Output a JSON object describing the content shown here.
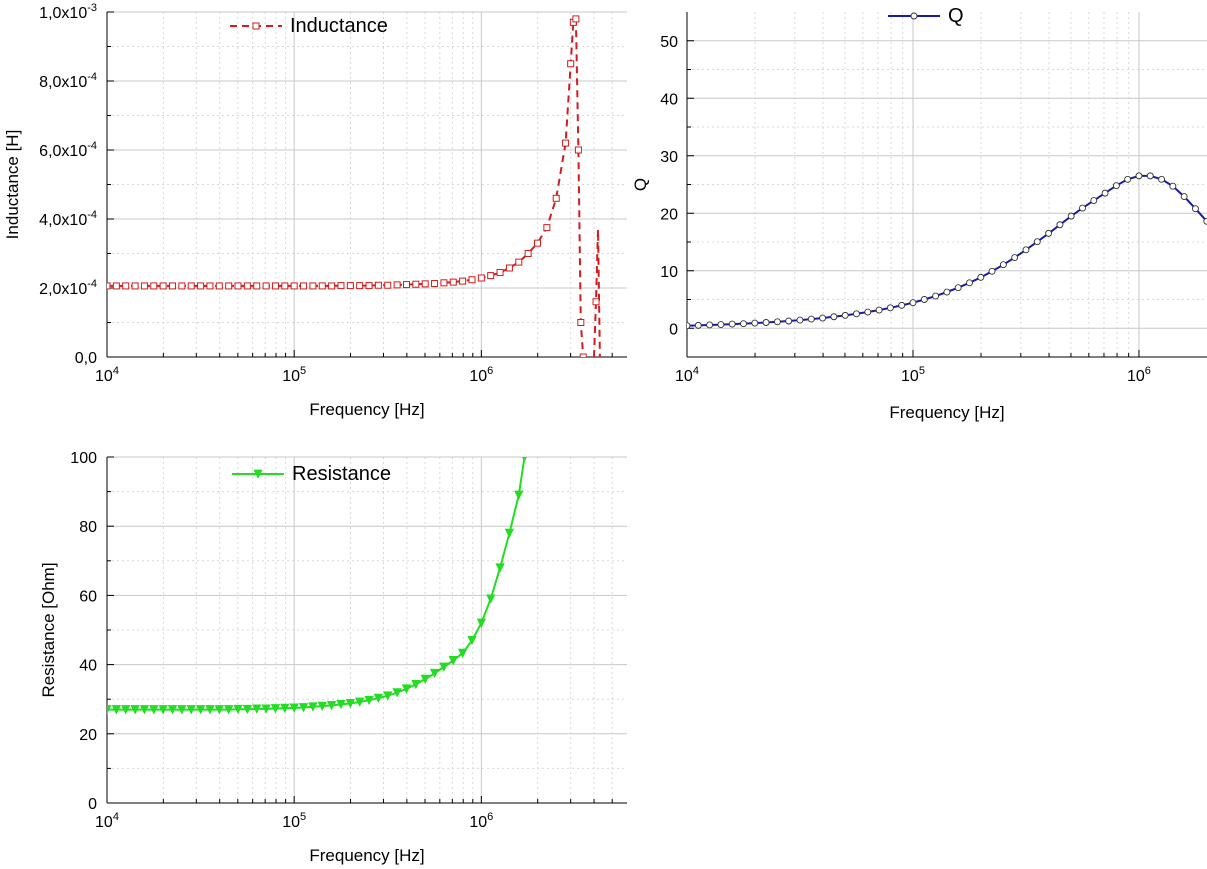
{
  "chart_data": [
    {
      "type": "line",
      "xlabel": "Frequency [Hz]",
      "ylabel": "Inductance [H]",
      "x_scale": "log",
      "xlim": [
        10000,
        6000000
      ],
      "ylim": [
        0,
        0.001
      ],
      "x_ticks": [
        {
          "value": 10000,
          "base": "10",
          "exp": "4"
        },
        {
          "value": 100000,
          "base": "10",
          "exp": "5"
        },
        {
          "value": 1000000,
          "base": "10",
          "exp": "6"
        }
      ],
      "y_ticks": [
        {
          "value": 0,
          "mant": "0,0",
          "exp": ""
        },
        {
          "value": 0.0002,
          "mant": "2,0x10",
          "exp": "-4"
        },
        {
          "value": 0.0004,
          "mant": "4,0x10",
          "exp": "-4"
        },
        {
          "value": 0.0006,
          "mant": "6,0x10",
          "exp": "-4"
        },
        {
          "value": 0.0008,
          "mant": "8,0x10",
          "exp": "-4"
        },
        {
          "value": 0.001,
          "mant": "1,0x10",
          "exp": "-3"
        }
      ],
      "grid": true,
      "legend_position": "top-center",
      "series": [
        {
          "name": "Inductance",
          "color": "#d01e1e",
          "line_style": "dashed",
          "marker": "square",
          "points": [
            [
              10000,
              0.000206
            ],
            [
              11220,
              0.000206
            ],
            [
              12589,
              0.000206
            ],
            [
              14125,
              0.000206
            ],
            [
              15849,
              0.000206
            ],
            [
              17783,
              0.000206
            ],
            [
              19953,
              0.000206
            ],
            [
              22387,
              0.000206
            ],
            [
              25119,
              0.000206
            ],
            [
              28184,
              0.000206
            ],
            [
              31623,
              0.000206
            ],
            [
              35481,
              0.000206
            ],
            [
              39811,
              0.000206
            ],
            [
              44668,
              0.000206
            ],
            [
              50119,
              0.000206
            ],
            [
              56234,
              0.000206
            ],
            [
              63096,
              0.000206
            ],
            [
              70795,
              0.000206
            ],
            [
              79433,
              0.000206
            ],
            [
              89125,
              0.000206
            ],
            [
              100000,
              0.000206
            ],
            [
              112202,
              0.000206
            ],
            [
              125893,
              0.000206
            ],
            [
              141254,
              0.000206
            ],
            [
              158489,
              0.000206
            ],
            [
              177828,
              0.000207
            ],
            [
              199526,
              0.000207
            ],
            [
              223872,
              0.000207
            ],
            [
              251189,
              0.000207
            ],
            [
              281838,
              0.000208
            ],
            [
              316228,
              0.000208
            ],
            [
              354813,
              0.000209
            ],
            [
              398107,
              0.00021
            ],
            [
              446684,
              0.000211
            ],
            [
              501187,
              0.000212
            ],
            [
              562341,
              0.000213
            ],
            [
              630957,
              0.000215
            ],
            [
              707946,
              0.000217
            ],
            [
              794328,
              0.00022
            ],
            [
              891251,
              0.000224
            ],
            [
              1000000,
              0.000229
            ],
            [
              1122018,
              0.000236
            ],
            [
              1258925,
              0.000245
            ],
            [
              1412538,
              0.000258
            ],
            [
              1584893,
              0.000275
            ],
            [
              1778279,
              0.0003
            ],
            [
              1995262,
              0.00033
            ],
            [
              2238721,
              0.000375
            ],
            [
              2511886,
              0.00046
            ],
            [
              2818383,
              0.00062
            ],
            [
              3000000,
              0.00085
            ],
            [
              3100000,
              0.00097
            ],
            [
              3200000,
              0.00098
            ],
            [
              3300000,
              0.0006
            ],
            [
              3400000,
              0.0001
            ],
            [
              3500000,
              0.0
            ]
          ],
          "points_after": [
            [
              4000000,
              0.0
            ],
            [
              4100000,
              0.00016
            ],
            [
              4200000,
              0.00037
            ],
            [
              4300000,
              0.0
            ]
          ]
        }
      ]
    },
    {
      "type": "line",
      "xlabel": "Frequency [Hz]",
      "ylabel": "Q",
      "x_scale": "log",
      "xlim": [
        10000,
        2000000
      ],
      "ylim": [
        -5,
        55
      ],
      "x_ticks": [
        {
          "value": 10000,
          "base": "10",
          "exp": "4"
        },
        {
          "value": 100000,
          "base": "10",
          "exp": "5"
        },
        {
          "value": 1000000,
          "base": "10",
          "exp": "6"
        }
      ],
      "y_ticks": [
        {
          "value": 0,
          "label": "0"
        },
        {
          "value": 10,
          "label": "10"
        },
        {
          "value": 20,
          "label": "20"
        },
        {
          "value": 30,
          "label": "30"
        },
        {
          "value": 40,
          "label": "40"
        },
        {
          "value": 50,
          "label": "50"
        }
      ],
      "grid": true,
      "legend_position": "top-center",
      "series": [
        {
          "name": "Q",
          "color": "#1a1aa8",
          "line_style": "solid",
          "marker": "circle",
          "points": [
            [
              10000,
              0.45
            ],
            [
              11220,
              0.5
            ],
            [
              12589,
              0.57
            ],
            [
              14125,
              0.64
            ],
            [
              15849,
              0.72
            ],
            [
              17783,
              0.8
            ],
            [
              19953,
              0.9
            ],
            [
              22387,
              1.0
            ],
            [
              25119,
              1.12
            ],
            [
              28184,
              1.26
            ],
            [
              31623,
              1.42
            ],
            [
              35481,
              1.59
            ],
            [
              39811,
              1.78
            ],
            [
              44668,
              2.0
            ],
            [
              50119,
              2.24
            ],
            [
              56234,
              2.51
            ],
            [
              63096,
              2.82
            ],
            [
              70795,
              3.16
            ],
            [
              79433,
              3.55
            ],
            [
              89125,
              3.98
            ],
            [
              100000,
              4.45
            ],
            [
              112202,
              5.0
            ],
            [
              125893,
              5.6
            ],
            [
              141254,
              6.3
            ],
            [
              158489,
              7.05
            ],
            [
              177828,
              7.9
            ],
            [
              199526,
              8.85
            ],
            [
              223872,
              9.9
            ],
            [
              251189,
              11.05
            ],
            [
              281838,
              12.3
            ],
            [
              316228,
              13.65
            ],
            [
              354813,
              15.05
            ],
            [
              398107,
              16.5
            ],
            [
              446684,
              18.0
            ],
            [
              501187,
              19.5
            ],
            [
              562341,
              20.9
            ],
            [
              630957,
              22.2
            ],
            [
              707946,
              23.5
            ],
            [
              794328,
              24.8
            ],
            [
              891251,
              25.9
            ],
            [
              1000000,
              26.5
            ],
            [
              1122018,
              26.5
            ],
            [
              1258925,
              25.9
            ],
            [
              1412538,
              24.7
            ],
            [
              1584893,
              22.9
            ],
            [
              1778279,
              20.8
            ],
            [
              1995262,
              18.6
            ]
          ]
        }
      ]
    },
    {
      "type": "line",
      "xlabel": "Frequency [Hz]",
      "ylabel": "Resistance [Ohm]",
      "x_scale": "log",
      "xlim": [
        10000,
        6000000
      ],
      "ylim": [
        0,
        100
      ],
      "x_ticks": [
        {
          "value": 10000,
          "base": "10",
          "exp": "4"
        },
        {
          "value": 100000,
          "base": "10",
          "exp": "5"
        },
        {
          "value": 1000000,
          "base": "10",
          "exp": "6"
        }
      ],
      "y_ticks": [
        {
          "value": 0,
          "label": "0"
        },
        {
          "value": 20,
          "label": "20"
        },
        {
          "value": 40,
          "label": "40"
        },
        {
          "value": 60,
          "label": "60"
        },
        {
          "value": 80,
          "label": "80"
        },
        {
          "value": 100,
          "label": "100"
        }
      ],
      "grid": true,
      "legend_position": "top-center",
      "series": [
        {
          "name": "Resistance",
          "color": "#22dd22",
          "line_style": "solid",
          "marker": "triangle-down",
          "points": [
            [
              10000,
              27.0
            ],
            [
              11220,
              27.0
            ],
            [
              12589,
              27.0
            ],
            [
              14125,
              27.0
            ],
            [
              15849,
              27.0
            ],
            [
              17783,
              27.0
            ],
            [
              19953,
              27.0
            ],
            [
              22387,
              27.0
            ],
            [
              25119,
              27.0
            ],
            [
              28184,
              27.0
            ],
            [
              31623,
              27.0
            ],
            [
              35481,
              27.0
            ],
            [
              39811,
              27.0
            ],
            [
              44668,
              27.0
            ],
            [
              50119,
              27.1
            ],
            [
              56234,
              27.1
            ],
            [
              63096,
              27.2
            ],
            [
              70795,
              27.2
            ],
            [
              79433,
              27.3
            ],
            [
              89125,
              27.4
            ],
            [
              100000,
              27.5
            ],
            [
              112202,
              27.6
            ],
            [
              125893,
              27.8
            ],
            [
              141254,
              28.0
            ],
            [
              158489,
              28.2
            ],
            [
              177828,
              28.5
            ],
            [
              199526,
              28.8
            ],
            [
              223872,
              29.2
            ],
            [
              251189,
              29.7
            ],
            [
              281838,
              30.3
            ],
            [
              316228,
              31.0
            ],
            [
              354813,
              31.9
            ],
            [
              398107,
              33.0
            ],
            [
              446684,
              34.3
            ],
            [
              501187,
              35.8
            ],
            [
              562341,
              37.5
            ],
            [
              630957,
              39.3
            ],
            [
              707946,
              41.2
            ],
            [
              794328,
              43.3
            ],
            [
              891251,
              47.0
            ],
            [
              1000000,
              52.0
            ],
            [
              1122018,
              59.0
            ],
            [
              1258925,
              68.0
            ],
            [
              1412538,
              78.0
            ],
            [
              1584893,
              89.0
            ],
            [
              1700000,
              100.0
            ]
          ]
        }
      ]
    }
  ]
}
